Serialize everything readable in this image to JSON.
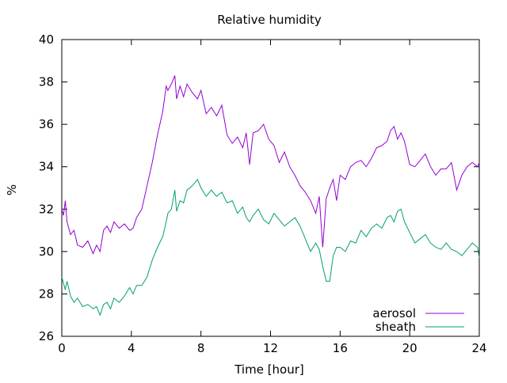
{
  "chart_data": {
    "type": "line",
    "title": "Relative humidity",
    "xlabel": "Time [hour]",
    "ylabel": "%",
    "xlim": [
      0,
      24
    ],
    "ylim": [
      26,
      40
    ],
    "xticks": [
      0,
      4,
      8,
      12,
      16,
      20,
      24
    ],
    "yticks": [
      26,
      28,
      30,
      32,
      34,
      36,
      38,
      40
    ],
    "grid": false,
    "legend_position": "bottom-right",
    "series": [
      {
        "name": "aerosol",
        "color": "#9400d3",
        "x": [
          0,
          0.1,
          0.2,
          0.3,
          0.5,
          0.7,
          0.9,
          1.2,
          1.5,
          1.8,
          2.0,
          2.2,
          2.4,
          2.6,
          2.8,
          3.0,
          3.3,
          3.6,
          3.9,
          4.1,
          4.3,
          4.6,
          4.9,
          5.2,
          5.5,
          5.8,
          6.0,
          6.1,
          6.3,
          6.5,
          6.6,
          6.8,
          7.0,
          7.2,
          7.5,
          7.8,
          8.0,
          8.3,
          8.6,
          8.9,
          9.2,
          9.5,
          9.8,
          10.1,
          10.4,
          10.6,
          10.8,
          11.0,
          11.3,
          11.6,
          11.9,
          12.2,
          12.5,
          12.8,
          13.1,
          13.4,
          13.7,
          14.0,
          14.3,
          14.6,
          14.8,
          15.0,
          15.2,
          15.4,
          15.6,
          15.8,
          16.0,
          16.3,
          16.6,
          16.9,
          17.2,
          17.5,
          17.8,
          18.1,
          18.4,
          18.7,
          18.9,
          19.1,
          19.3,
          19.5,
          19.7,
          20.0,
          20.3,
          20.6,
          20.9,
          21.2,
          21.5,
          21.8,
          22.1,
          22.4,
          22.7,
          23.0,
          23.3,
          23.6,
          23.9,
          24.0
        ],
        "y": [
          32.0,
          31.7,
          32.4,
          31.4,
          30.8,
          31.0,
          30.3,
          30.2,
          30.5,
          29.9,
          30.3,
          30.0,
          31.0,
          31.2,
          30.9,
          31.4,
          31.1,
          31.3,
          31.0,
          31.1,
          31.6,
          32.0,
          33.1,
          34.2,
          35.5,
          36.6,
          37.8,
          37.6,
          37.9,
          38.3,
          37.2,
          37.8,
          37.3,
          37.9,
          37.5,
          37.2,
          37.6,
          36.5,
          36.8,
          36.4,
          36.9,
          35.5,
          35.1,
          35.4,
          34.9,
          35.6,
          34.1,
          35.6,
          35.7,
          36.0,
          35.3,
          35.0,
          34.2,
          34.7,
          34.0,
          33.6,
          33.1,
          32.8,
          32.4,
          31.8,
          32.6,
          30.2,
          32.5,
          33.0,
          33.4,
          32.4,
          33.6,
          33.4,
          34.0,
          34.2,
          34.3,
          34.0,
          34.4,
          34.9,
          35.0,
          35.2,
          35.7,
          35.9,
          35.3,
          35.6,
          35.2,
          34.1,
          34.0,
          34.3,
          34.6,
          34.0,
          33.6,
          33.9,
          33.9,
          34.2,
          32.9,
          33.6,
          34.0,
          34.2,
          34.0,
          34.2
        ]
      },
      {
        "name": "sheath",
        "color": "#009e73",
        "x": [
          0,
          0.1,
          0.2,
          0.3,
          0.5,
          0.7,
          0.9,
          1.2,
          1.5,
          1.8,
          2.0,
          2.2,
          2.4,
          2.6,
          2.8,
          3.0,
          3.3,
          3.6,
          3.9,
          4.1,
          4.3,
          4.6,
          4.9,
          5.2,
          5.5,
          5.8,
          6.0,
          6.1,
          6.3,
          6.5,
          6.6,
          6.8,
          7.0,
          7.2,
          7.5,
          7.8,
          8.0,
          8.3,
          8.6,
          8.9,
          9.2,
          9.5,
          9.8,
          10.1,
          10.4,
          10.6,
          10.8,
          11.0,
          11.3,
          11.6,
          11.9,
          12.2,
          12.5,
          12.8,
          13.1,
          13.4,
          13.7,
          14.0,
          14.3,
          14.6,
          14.8,
          15.0,
          15.2,
          15.4,
          15.6,
          15.8,
          16.0,
          16.3,
          16.6,
          16.9,
          17.2,
          17.5,
          17.8,
          18.1,
          18.4,
          18.7,
          18.9,
          19.1,
          19.3,
          19.5,
          19.7,
          20.0,
          20.3,
          20.6,
          20.9,
          21.2,
          21.5,
          21.8,
          22.1,
          22.4,
          22.7,
          23.0,
          23.3,
          23.6,
          23.9,
          24.0
        ],
        "y": [
          28.8,
          28.5,
          28.2,
          28.6,
          27.9,
          27.6,
          27.8,
          27.4,
          27.5,
          27.3,
          27.4,
          27.0,
          27.5,
          27.6,
          27.3,
          27.8,
          27.6,
          27.9,
          28.3,
          28.0,
          28.4,
          28.4,
          28.8,
          29.6,
          30.2,
          30.7,
          31.4,
          31.8,
          32.0,
          32.9,
          31.9,
          32.4,
          32.3,
          32.9,
          33.1,
          33.4,
          33.0,
          32.6,
          32.9,
          32.6,
          32.8,
          32.3,
          32.4,
          31.8,
          32.1,
          31.6,
          31.4,
          31.7,
          32.0,
          31.5,
          31.3,
          31.8,
          31.5,
          31.2,
          31.4,
          31.6,
          31.2,
          30.6,
          30.0,
          30.4,
          30.1,
          29.3,
          28.6,
          28.6,
          29.8,
          30.2,
          30.2,
          30.0,
          30.5,
          30.4,
          31.0,
          30.7,
          31.1,
          31.3,
          31.1,
          31.6,
          31.7,
          31.4,
          31.9,
          32.0,
          31.4,
          30.9,
          30.4,
          30.6,
          30.8,
          30.4,
          30.2,
          30.1,
          30.4,
          30.1,
          30.0,
          29.8,
          30.1,
          30.4,
          30.2,
          29.7
        ]
      }
    ]
  }
}
